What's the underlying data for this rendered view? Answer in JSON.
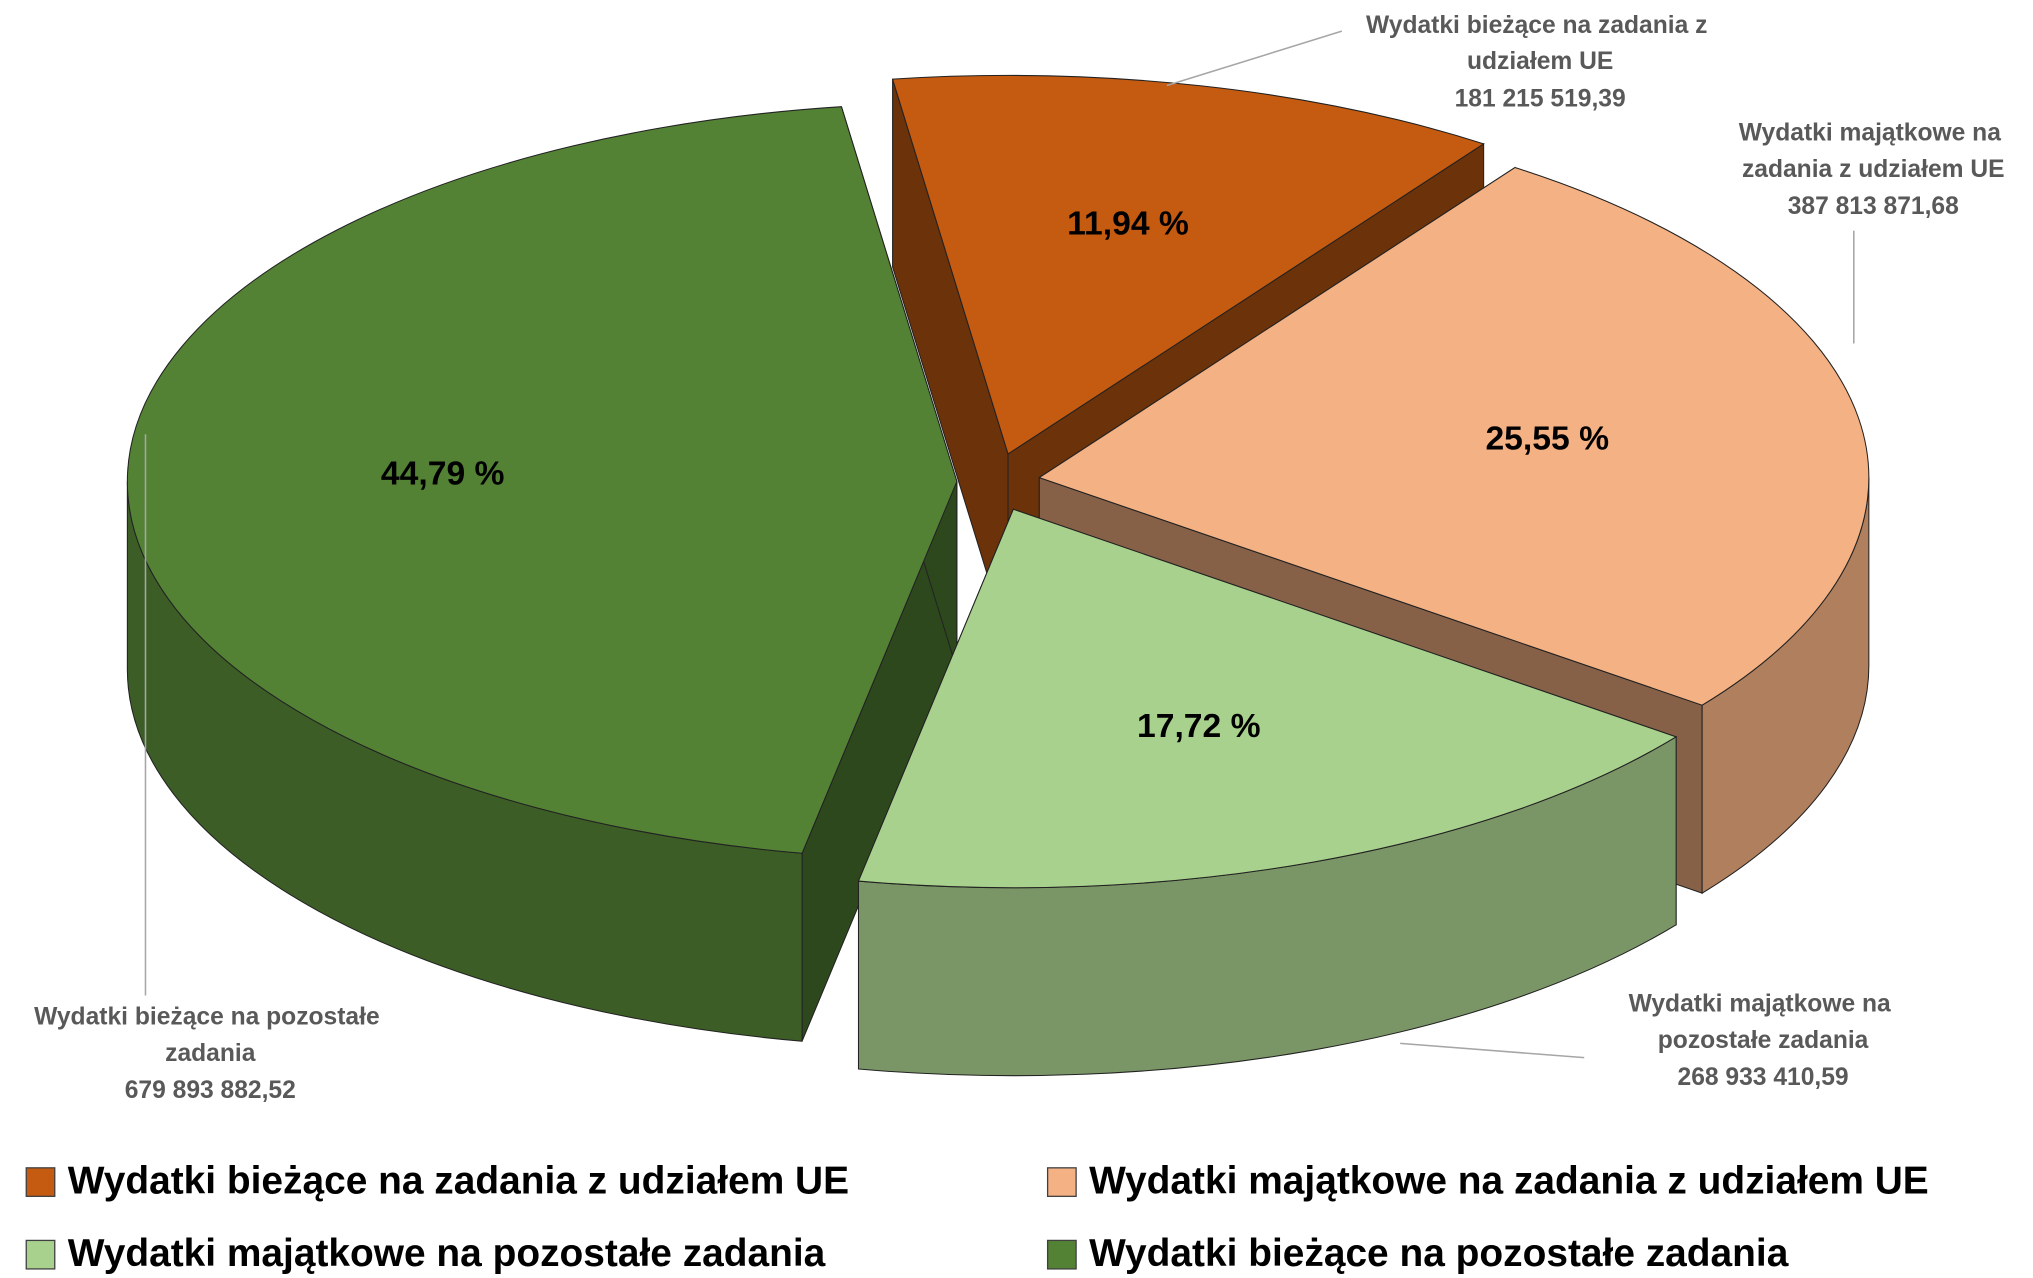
{
  "chart_data": {
    "type": "pie3d",
    "categories": [
      "Wydatki bieżące na zadania z udziałem UE",
      "Wydatki majątkowe na zadania z udziałem UE",
      "Wydatki majątkowe na pozostałe zadania",
      "Wydatki bieżące na pozostałe zadania"
    ],
    "values": [
      11.94,
      25.55,
      17.72,
      44.79
    ],
    "value_labels": [
      "11,94 %",
      "25,55 %",
      "17,72 %",
      "44,79 %"
    ],
    "amounts": [
      181215519.39,
      387813871.68,
      268933410.59,
      679893882.52
    ],
    "amount_labels": [
      "181 215 519,39",
      "387 813 871,68",
      "268 933 410,59",
      "679 893 882,52"
    ],
    "colors": [
      "#c55a11",
      "#f4b183",
      "#a9d18e",
      "#548235"
    ],
    "legend": "bottom"
  }
}
